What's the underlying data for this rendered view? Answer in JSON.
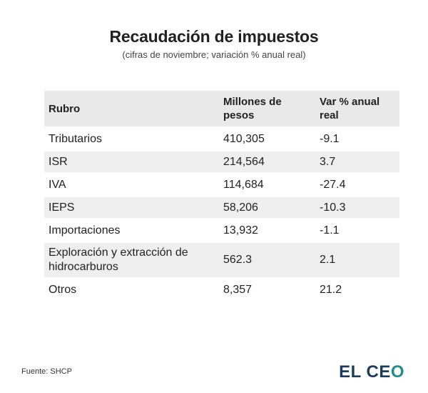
{
  "header": {
    "title": "Recaudación de impuestos",
    "subtitle": "(cifras de noviembre; variación % anual real)"
  },
  "table": {
    "columns": [
      "Rubro",
      "Millones de pesos",
      "Var % anual real"
    ],
    "rows": [
      {
        "rubro": "Tributarios",
        "millones": "410,305",
        "var": "-9.1"
      },
      {
        "rubro": "ISR",
        "millones": "214,564",
        "var": "3.7"
      },
      {
        "rubro": "IVA",
        "millones": "114,684",
        "var": "-27.4"
      },
      {
        "rubro": "IEPS",
        "millones": "58,206",
        "var": "-10.3"
      },
      {
        "rubro": "Importaciones",
        "millones": "13,932",
        "var": "-1.1"
      },
      {
        "rubro": "Exploración y extracción de hidrocarburos",
        "millones": "562.3",
        "var": "2.1"
      },
      {
        "rubro": "Otros",
        "millones": "8,357",
        "var": "21.2"
      }
    ]
  },
  "footer": {
    "source": "Fuente: SHCP",
    "logo_main": "EL CE",
    "logo_end": "O"
  },
  "colors": {
    "header_bg": "#e9e9e9",
    "stripe_bg": "#efefef",
    "logo_navy": "#1d3b5a",
    "logo_teal": "#1f8e8c"
  },
  "chart_data": {
    "type": "table",
    "title": "Recaudación de impuestos",
    "subtitle": "(cifras de noviembre; variación % anual real)",
    "columns": [
      "Rubro",
      "Millones de pesos",
      "Var % anual real"
    ],
    "categories": [
      "Tributarios",
      "ISR",
      "IVA",
      "IEPS",
      "Importaciones",
      "Exploración y extracción de hidrocarburos",
      "Otros"
    ],
    "series": [
      {
        "name": "Millones de pesos",
        "values": [
          410305,
          214564,
          114684,
          58206,
          13932,
          562.3,
          8357
        ]
      },
      {
        "name": "Var % anual real",
        "values": [
          -9.1,
          3.7,
          -27.4,
          -10.3,
          -1.1,
          2.1,
          21.2
        ]
      }
    ]
  }
}
